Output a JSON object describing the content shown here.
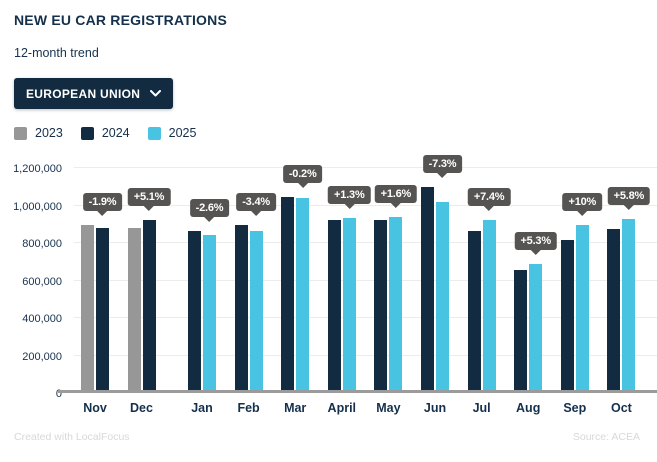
{
  "header": {
    "title": "NEW EU CAR REGISTRATIONS",
    "subtitle": "12-month trend"
  },
  "filter": {
    "selected": "EUROPEAN UNION"
  },
  "legend": {
    "items": [
      {
        "label": "2023",
        "color": "#979797"
      },
      {
        "label": "2024",
        "color": "#122B40"
      },
      {
        "label": "2025",
        "color": "#48C3E2"
      }
    ]
  },
  "chart_data": {
    "type": "bar",
    "title": "NEW EU CAR REGISTRATIONS",
    "subtitle": "12-month trend",
    "categories": [
      "Nov",
      "Dec",
      "Jan",
      "Feb",
      "Mar",
      "April",
      "May",
      "Jun",
      "Jul",
      "Aug",
      "Sep",
      "Oct"
    ],
    "series": [
      {
        "name": "2023",
        "color": "#979797",
        "values": [
          885000,
          867000,
          null,
          null,
          null,
          null,
          null,
          null,
          null,
          null,
          null,
          null
        ]
      },
      {
        "name": "2024",
        "color": "#122B40",
        "values": [
          868000,
          911000,
          852000,
          883000,
          1033000,
          913000,
          911000,
          1090000,
          851000,
          643000,
          807000,
          866000
        ]
      },
      {
        "name": "2025",
        "color": "#48C3E2",
        "values": [
          null,
          null,
          830000,
          853000,
          1031000,
          925000,
          926000,
          1010000,
          914000,
          677000,
          888000,
          916000
        ]
      }
    ],
    "change_labels": [
      "-1.9%",
      "+5.1%",
      "-2.6%",
      "-3.4%",
      "-0.2%",
      "+1.3%",
      "+1.6%",
      "-7.3%",
      "+7.4%",
      "+5.3%",
      "+10%",
      "+5.8%"
    ],
    "y_ticks": [
      {
        "label": "0",
        "value": 0
      },
      {
        "label": "200,000",
        "value": 200000
      },
      {
        "label": "400,000",
        "value": 400000
      },
      {
        "label": "600,000",
        "value": 600000
      },
      {
        "label": "800,000",
        "value": 800000
      },
      {
        "label": "1,000,000",
        "value": 1000000
      },
      {
        "label": "1,200,000",
        "value": 1200000
      }
    ],
    "ylim": [
      0,
      1200000
    ],
    "grid": true,
    "legend_position": "top-left",
    "tooltip_color": "#555453"
  },
  "footer": {
    "left": "Created with LocalFocus",
    "right": "Source: ACEA"
  }
}
